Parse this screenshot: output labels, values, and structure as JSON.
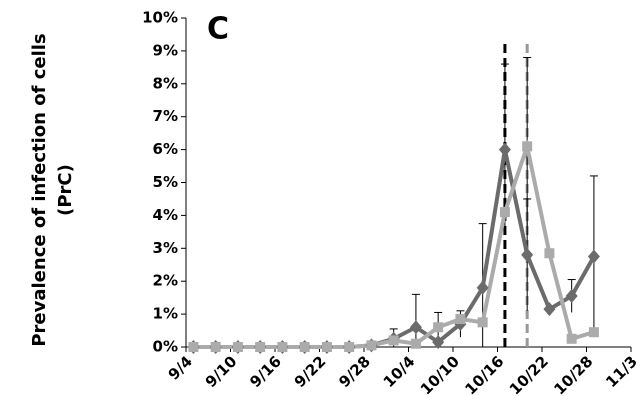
{
  "chart_data": {
    "type": "line",
    "title": "C",
    "ylabel": [
      "Prevalence of infection of cells",
      "(PrC)"
    ],
    "x": [
      1,
      4,
      7,
      10,
      13,
      16,
      19,
      22,
      25,
      28,
      31,
      34,
      37,
      40,
      43,
      46,
      49,
      52,
      55
    ],
    "series": [
      {
        "name": null,
        "color": "#6b6b6b",
        "marker": "diamond",
        "values": [
          0,
          0,
          0,
          0,
          0,
          0,
          0,
          0,
          0.05,
          0.25,
          0.6,
          0.15,
          0.7,
          1.8,
          6.0,
          2.8,
          1.15,
          1.55,
          2.75
        ],
        "errors": [
          null,
          null,
          null,
          null,
          null,
          null,
          null,
          null,
          null,
          0.3,
          1.0,
          0.9,
          0.4,
          1.95,
          2.6,
          1.7,
          null,
          0.5,
          2.45
        ]
      },
      {
        "name": null,
        "color": "#ababab",
        "marker": "square",
        "values": [
          0,
          0,
          0,
          0,
          0,
          0,
          0,
          0,
          0.05,
          0.2,
          0.1,
          0.6,
          0.85,
          0.75,
          4.1,
          6.1,
          2.85,
          0.25,
          0.45
        ],
        "errors": [
          null,
          null,
          null,
          null,
          null,
          null,
          null,
          null,
          null,
          null,
          null,
          null,
          null,
          null,
          null,
          2.7,
          null,
          null,
          null
        ]
      }
    ],
    "vlines": [
      {
        "x": 43,
        "color": "#000000"
      },
      {
        "x": 46,
        "color": "#999999"
      }
    ],
    "xlim": [
      0,
      60
    ],
    "xticks": [
      {
        "value": 0,
        "label": "9/4"
      },
      {
        "value": 6,
        "label": "9/10"
      },
      {
        "value": 12,
        "label": "9/16"
      },
      {
        "value": 18,
        "label": "9/22"
      },
      {
        "value": 24,
        "label": "9/28"
      },
      {
        "value": 30,
        "label": "10/4"
      },
      {
        "value": 36,
        "label": "10/10"
      },
      {
        "value": 42,
        "label": "10/16"
      },
      {
        "value": 48,
        "label": "10/22"
      },
      {
        "value": 54,
        "label": "10/28"
      },
      {
        "value": 60,
        "label": "11/3"
      }
    ],
    "ylim": [
      0,
      10
    ],
    "yticks": [
      {
        "value": 0,
        "label": "0%"
      },
      {
        "value": 1,
        "label": "1%"
      },
      {
        "value": 2,
        "label": "2%"
      },
      {
        "value": 3,
        "label": "3%"
      },
      {
        "value": 4,
        "label": "4%"
      },
      {
        "value": 5,
        "label": "5%"
      },
      {
        "value": 6,
        "label": "6%"
      },
      {
        "value": 7,
        "label": "7%"
      },
      {
        "value": 8,
        "label": "8%"
      },
      {
        "value": 9,
        "label": "9%"
      },
      {
        "value": 10,
        "label": "10%"
      }
    ]
  }
}
